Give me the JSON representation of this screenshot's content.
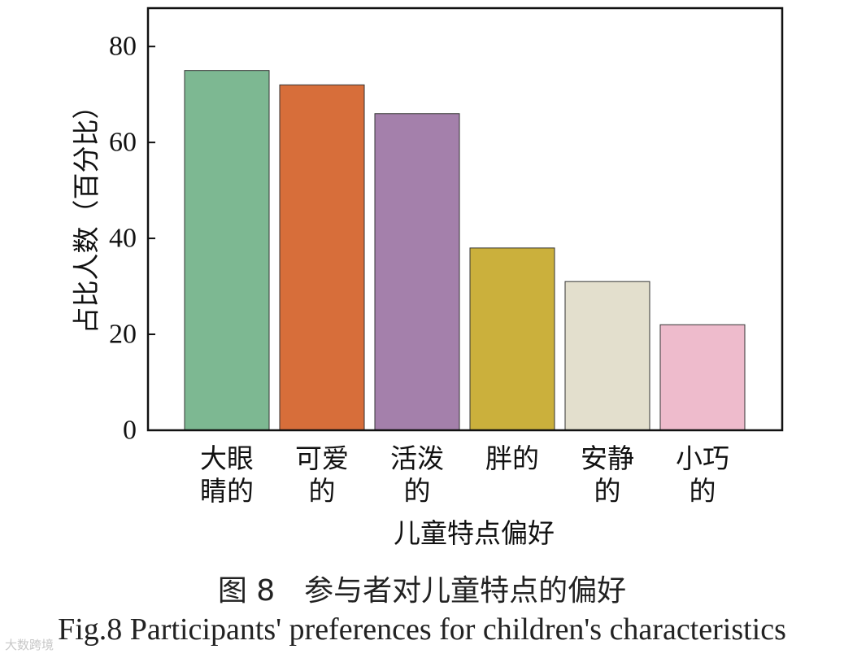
{
  "chart_data": {
    "type": "bar",
    "categories": [
      [
        "大眼",
        "睛的"
      ],
      [
        "可爱",
        "的"
      ],
      [
        "活泼",
        "的"
      ],
      [
        "胖的"
      ],
      [
        "安静",
        "的"
      ],
      [
        "小巧",
        "的"
      ]
    ],
    "values": [
      75,
      72,
      66,
      38,
      31,
      22
    ],
    "colors": [
      "#7db892",
      "#d76e3a",
      "#a480ab",
      "#cbb03c",
      "#e3dfcd",
      "#eebbcc"
    ],
    "ylabel": "占比人数（百分比）",
    "xlabel": "儿童特点偏好",
    "ylim": [
      0,
      88
    ],
    "yticks": [
      0,
      20,
      40,
      60,
      80
    ],
    "grid": false
  },
  "caption": {
    "cn": "图 8　参与者对儿童特点的偏好",
    "en": "Fig.8 Participants' preferences for children's characteristics"
  },
  "watermark": "大数跨境"
}
